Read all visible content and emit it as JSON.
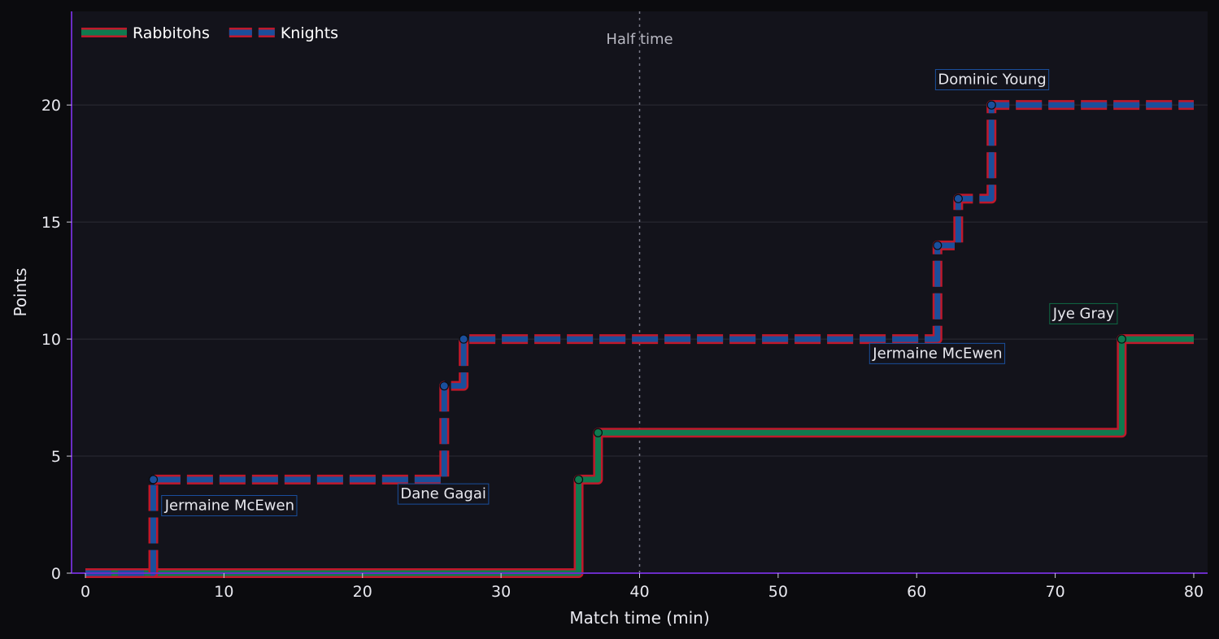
{
  "chart_data": {
    "type": "line",
    "step": "post",
    "xlabel": "Match time (min)",
    "ylabel": "Points",
    "xlim": [
      -1,
      81
    ],
    "ylim": [
      0,
      24
    ],
    "x_ticks": [
      0,
      10,
      20,
      30,
      40,
      50,
      60,
      70,
      80
    ],
    "y_ticks": [
      0,
      5,
      10,
      15,
      20
    ],
    "grid": "horizontal",
    "legend": "top-left",
    "colors": {
      "background": "#0b0b0e",
      "plot_background": "#13131b",
      "grid": "#2b2b35",
      "spine": "#6a2cc6",
      "rabbitohs_fill": "#0f7a4f",
      "rabbitohs_edge": "#c0182b",
      "knights_fill": "#1a4f9c",
      "knights_edge": "#c0182b",
      "halftime_line": "#7a7a88"
    },
    "reference_line": {
      "x": 40,
      "label": "Half time"
    },
    "series": [
      {
        "name": "Rabbitohs",
        "style": "solid",
        "points": [
          [
            0,
            0
          ],
          [
            35.6,
            4
          ],
          [
            37,
            6
          ],
          [
            74.8,
            10
          ],
          [
            80,
            10
          ]
        ],
        "markers": [
          [
            35.6,
            4
          ],
          [
            37,
            6
          ],
          [
            74.8,
            10
          ]
        ]
      },
      {
        "name": "Knights",
        "style": "dashed",
        "points": [
          [
            0,
            0
          ],
          [
            4.9,
            4
          ],
          [
            25.9,
            8
          ],
          [
            27.3,
            10
          ],
          [
            61.5,
            14
          ],
          [
            63,
            16
          ],
          [
            65.4,
            20
          ],
          [
            80,
            20
          ]
        ],
        "markers": [
          [
            4.9,
            4
          ],
          [
            25.9,
            8
          ],
          [
            27.3,
            10
          ],
          [
            61.5,
            14
          ],
          [
            63,
            16
          ],
          [
            65.4,
            20
          ]
        ]
      }
    ],
    "annotations": [
      {
        "text": "Jermaine McEwen",
        "x": 5.5,
        "y": 2.9,
        "team": "Knights"
      },
      {
        "text": "Dane Gagai",
        "x": 22.5,
        "y": 3.4,
        "team": "Knights"
      },
      {
        "text": "Jermaine McEwen",
        "x": 56.6,
        "y": 9.4,
        "team": "Knights"
      },
      {
        "text": "Dominic Young",
        "x": 61.3,
        "y": 21.1,
        "team": "Knights"
      },
      {
        "text": "Jye Gray",
        "x": 69.6,
        "y": 11.1,
        "team": "Rabbitohs"
      }
    ]
  }
}
